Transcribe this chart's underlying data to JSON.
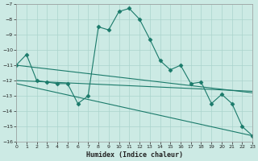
{
  "xlabel": "Humidex (Indice chaleur)",
  "background_color": "#cceae4",
  "grid_color": "#aad4cc",
  "line_color": "#1a7a6a",
  "xlim": [
    0,
    23
  ],
  "ylim": [
    -16,
    -7
  ],
  "xticks": [
    0,
    1,
    2,
    3,
    4,
    5,
    6,
    7,
    8,
    9,
    10,
    11,
    12,
    13,
    14,
    15,
    16,
    17,
    18,
    19,
    20,
    21,
    22,
    23
  ],
  "yticks": [
    -16,
    -15,
    -14,
    -13,
    -12,
    -11,
    -10,
    -9,
    -8,
    -7
  ],
  "series": [
    {
      "x": [
        0,
        1,
        2,
        3,
        4,
        5,
        6,
        7,
        8,
        9,
        10,
        11,
        12,
        13,
        14,
        15,
        16,
        17,
        18,
        19,
        20,
        21,
        22,
        23
      ],
      "y": [
        -11.0,
        -10.3,
        -12.0,
        -12.1,
        -12.2,
        -12.2,
        -13.5,
        -13.0,
        -8.5,
        -8.7,
        -7.5,
        -7.3,
        -8.0,
        -9.3,
        -10.7,
        -11.3,
        -11.0,
        -12.2,
        -12.1,
        -13.5,
        -12.9,
        -13.5,
        -15.0,
        -15.6
      ],
      "marker": "D",
      "markersize": 2.5
    },
    {
      "x": [
        0,
        23
      ],
      "y": [
        -11.0,
        -12.8
      ],
      "marker": false
    },
    {
      "x": [
        0,
        23
      ],
      "y": [
        -12.0,
        -12.7
      ],
      "marker": false
    },
    {
      "x": [
        0,
        23
      ],
      "y": [
        -12.2,
        -15.6
      ],
      "marker": false
    }
  ]
}
